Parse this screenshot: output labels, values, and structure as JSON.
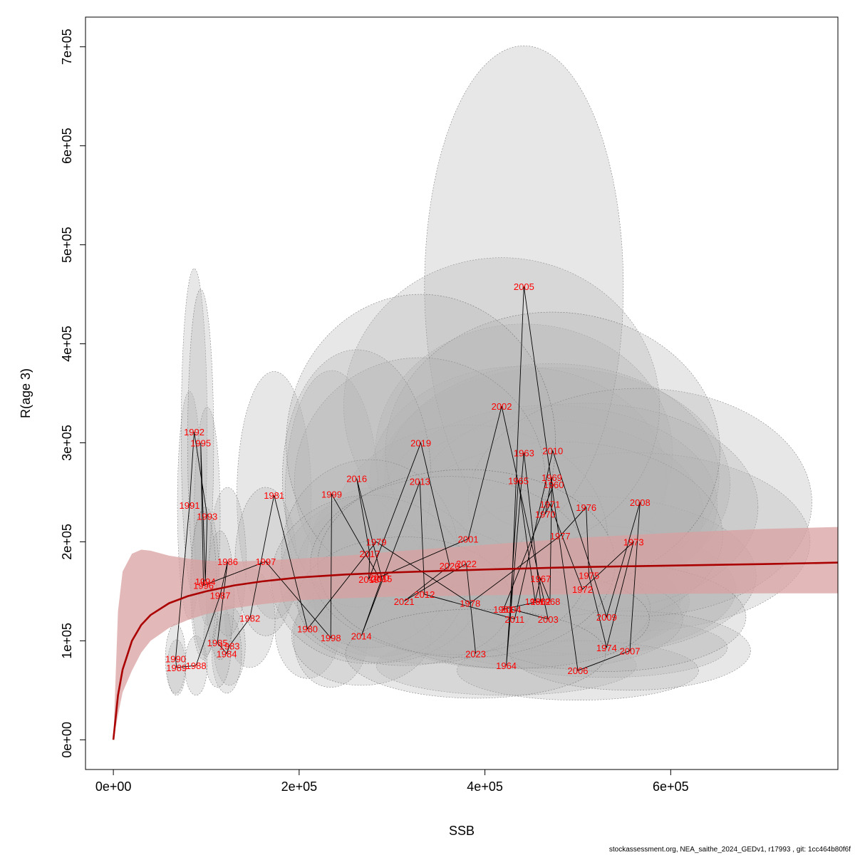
{
  "footer": {
    "text": "stockassessment.org, NEA_saithe_2024_GEDv1, r17993 , git: 1cc464b80f6f"
  },
  "chart_data": {
    "type": "scatter",
    "title": "",
    "xlabel": "SSB",
    "ylabel": "R(age 3)",
    "xlim": [
      -30000,
      780000
    ],
    "ylim": [
      -30000,
      730000
    ],
    "x_ticks": [
      0,
      200000,
      400000,
      600000
    ],
    "x_tick_labels": [
      "0e+00",
      "2e+05",
      "4e+05",
      "6e+05"
    ],
    "y_ticks": [
      0,
      100000,
      200000,
      300000,
      400000,
      500000,
      600000,
      700000
    ],
    "y_tick_labels": [
      "0e+00",
      "1e+05",
      "2e+05",
      "3e+05",
      "4e+05",
      "5e+05",
      "6e+05",
      "7e+05"
    ],
    "grid": false,
    "legend": "none",
    "colors": {
      "point_label": "#ff0000",
      "fit_line": "#aa0000",
      "fit_band": "#d9a0a0",
      "ellipse": "#b3b3b3",
      "path": "#000000"
    },
    "stock_recruitment_fit": {
      "model": "Beverton-Holt",
      "x": [
        0,
        5000,
        10000,
        20000,
        30000,
        40000,
        60000,
        80000,
        100000,
        130000,
        160000,
        200000,
        250000,
        300000,
        400000,
        500000,
        600000,
        700000,
        780000
      ],
      "y": [
        0,
        45000,
        71000,
        100000,
        116000,
        126000,
        138000,
        145000,
        150000,
        156000,
        160000,
        164000,
        167000,
        169000,
        172000,
        174500,
        176000,
        177500,
        179000
      ],
      "lower": [
        0,
        25000,
        48000,
        70000,
        88000,
        100000,
        113000,
        121000,
        127000,
        133000,
        137000,
        141000,
        143000,
        144500,
        146000,
        147000,
        147500,
        148000,
        148000
      ],
      "upper": [
        0,
        130000,
        170000,
        188000,
        192000,
        191000,
        186000,
        183000,
        181000,
        180000,
        181000,
        183000,
        186000,
        190000,
        197000,
        204000,
        209000,
        213000,
        215000
      ]
    },
    "points": [
      {
        "year": "1960",
        "x": 474000,
        "y": 258000,
        "rx": 190000,
        "ry": 118000
      },
      {
        "year": "1961",
        "x": 420000,
        "y": 132000,
        "rx": 150000,
        "ry": 60000
      },
      {
        "year": "1962",
        "x": 460000,
        "y": 140000,
        "rx": 150000,
        "ry": 60000
      },
      {
        "year": "1963",
        "x": 442000,
        "y": 290000,
        "rx": 160000,
        "ry": 130000
      },
      {
        "year": "1964",
        "x": 423000,
        "y": 75000,
        "rx": 140000,
        "ry": 30000
      },
      {
        "year": "1965",
        "x": 436000,
        "y": 262000,
        "rx": 160000,
        "ry": 115000
      },
      {
        "year": "1966",
        "x": 454000,
        "y": 140000,
        "rx": 150000,
        "ry": 55000
      },
      {
        "year": "1967",
        "x": 460000,
        "y": 163000,
        "rx": 160000,
        "ry": 70000
      },
      {
        "year": "1968",
        "x": 470000,
        "y": 140000,
        "rx": 150000,
        "ry": 55000
      },
      {
        "year": "1969",
        "x": 472000,
        "y": 265000,
        "rx": 180000,
        "ry": 115000
      },
      {
        "year": "1970",
        "x": 465000,
        "y": 228000,
        "rx": 170000,
        "ry": 95000
      },
      {
        "year": "1971",
        "x": 470000,
        "y": 238000,
        "rx": 180000,
        "ry": 100000
      },
      {
        "year": "1972",
        "x": 505000,
        "y": 152000,
        "rx": 165000,
        "ry": 65000
      },
      {
        "year": "1973",
        "x": 560000,
        "y": 200000,
        "rx": 190000,
        "ry": 90000
      },
      {
        "year": "1974",
        "x": 531000,
        "y": 93000,
        "rx": 130000,
        "ry": 30000
      },
      {
        "year": "1975",
        "x": 512000,
        "y": 166000,
        "rx": 180000,
        "ry": 80000
      },
      {
        "year": "1976",
        "x": 509000,
        "y": 235000,
        "rx": 185000,
        "ry": 105000
      },
      {
        "year": "1977",
        "x": 481000,
        "y": 206000,
        "rx": 175000,
        "ry": 95000
      },
      {
        "year": "1978",
        "x": 384000,
        "y": 138000,
        "rx": 140000,
        "ry": 55000
      },
      {
        "year": "1979",
        "x": 283000,
        "y": 200000,
        "rx": 70000,
        "ry": 55000
      },
      {
        "year": "1980",
        "x": 209000,
        "y": 112000,
        "rx": 35000,
        "ry": 50000
      },
      {
        "year": "1981",
        "x": 173000,
        "y": 247000,
        "rx": 40000,
        "ry": 125000
      },
      {
        "year": "1982",
        "x": 147000,
        "y": 123000,
        "rx": 27000,
        "ry": 50000
      },
      {
        "year": "1983",
        "x": 125000,
        "y": 95000,
        "rx": 17000,
        "ry": 40000
      },
      {
        "year": "1984",
        "x": 122000,
        "y": 87000,
        "rx": 16000,
        "ry": 40000
      },
      {
        "year": "1985",
        "x": 112000,
        "y": 98000,
        "rx": 15000,
        "ry": 45000
      },
      {
        "year": "1986",
        "x": 123000,
        "y": 180000,
        "rx": 20000,
        "ry": 75000
      },
      {
        "year": "1987",
        "x": 115000,
        "y": 146000,
        "rx": 15000,
        "ry": 65000
      },
      {
        "year": "1988",
        "x": 89000,
        "y": 75000,
        "rx": 12000,
        "ry": 30000
      },
      {
        "year": "1989",
        "x": 68000,
        "y": 73000,
        "rx": 10000,
        "ry": 28000
      },
      {
        "year": "1990",
        "x": 67000,
        "y": 82000,
        "rx": 11000,
        "ry": 35000
      },
      {
        "year": "1991",
        "x": 82000,
        "y": 237000,
        "rx": 13000,
        "ry": 115000
      },
      {
        "year": "1992",
        "x": 87000,
        "y": 311000,
        "rx": 14000,
        "ry": 165000
      },
      {
        "year": "1993",
        "x": 101000,
        "y": 226000,
        "rx": 14000,
        "ry": 110000
      },
      {
        "year": "1994",
        "x": 99000,
        "y": 160000,
        "rx": 15000,
        "ry": 75000
      },
      {
        "year": "1995",
        "x": 94000,
        "y": 300000,
        "rx": 14000,
        "ry": 155000
      },
      {
        "year": "1996",
        "x": 97000,
        "y": 156000,
        "rx": 14000,
        "ry": 75000
      },
      {
        "year": "1997",
        "x": 164000,
        "y": 180000,
        "rx": 33000,
        "ry": 75000
      },
      {
        "year": "1998",
        "x": 234000,
        "y": 103000,
        "rx": 40000,
        "ry": 50000
      },
      {
        "year": "1999",
        "x": 235000,
        "y": 248000,
        "rx": 50000,
        "ry": 125000
      },
      {
        "year": "2000",
        "x": 286000,
        "y": 164000,
        "rx": 90000,
        "ry": 80000
      },
      {
        "year": "2001",
        "x": 382000,
        "y": 203000,
        "rx": 150000,
        "ry": 115000
      },
      {
        "year": "2002",
        "x": 418000,
        "y": 337000,
        "rx": 170000,
        "ry": 150000
      },
      {
        "year": "2003",
        "x": 468000,
        "y": 122000,
        "rx": 145000,
        "ry": 50000
      },
      {
        "year": "2004",
        "x": 428000,
        "y": 132000,
        "rx": 150000,
        "ry": 60000
      },
      {
        "year": "2005",
        "x": 442000,
        "y": 458000,
        "rx": 107000,
        "ry": 243000
      },
      {
        "year": "2006",
        "x": 500000,
        "y": 70000,
        "rx": 130000,
        "ry": 30000
      },
      {
        "year": "2007",
        "x": 556000,
        "y": 90000,
        "rx": 130000,
        "ry": 40000
      },
      {
        "year": "2008",
        "x": 567000,
        "y": 240000,
        "rx": 185000,
        "ry": 115000
      },
      {
        "year": "2009",
        "x": 531000,
        "y": 124000,
        "rx": 150000,
        "ry": 55000
      },
      {
        "year": "2010",
        "x": 473000,
        "y": 292000,
        "rx": 180000,
        "ry": 140000
      },
      {
        "year": "2011",
        "x": 432000,
        "y": 122000,
        "rx": 145000,
        "ry": 50000
      },
      {
        "year": "2012",
        "x": 335000,
        "y": 147000,
        "rx": 120000,
        "ry": 70000
      },
      {
        "year": "2013",
        "x": 330000,
        "y": 261000,
        "rx": 135000,
        "ry": 125000
      },
      {
        "year": "2014",
        "x": 267000,
        "y": 105000,
        "rx": 75000,
        "ry": 50000
      },
      {
        "year": "2015",
        "x": 289000,
        "y": 163000,
        "rx": 110000,
        "ry": 85000
      },
      {
        "year": "2016",
        "x": 262000,
        "y": 264000,
        "rx": 80000,
        "ry": 130000
      },
      {
        "year": "2017",
        "x": 276000,
        "y": 188000,
        "rx": 95000,
        "ry": 95000
      },
      {
        "year": "2018",
        "x": 275000,
        "y": 162000,
        "rx": 105000,
        "ry": 85000
      },
      {
        "year": "2019",
        "x": 331000,
        "y": 300000,
        "rx": 145000,
        "ry": 150000
      },
      {
        "year": "2020",
        "x": 362000,
        "y": 176000,
        "rx": 150000,
        "ry": 90000
      },
      {
        "year": "2021",
        "x": 313000,
        "y": 140000,
        "rx": 115000,
        "ry": 65000
      },
      {
        "year": "2022",
        "x": 380000,
        "y": 178000,
        "rx": 160000,
        "ry": 95000
      },
      {
        "year": "2023",
        "x": 390000,
        "y": 87000,
        "rx": 140000,
        "ry": 45000
      }
    ]
  }
}
